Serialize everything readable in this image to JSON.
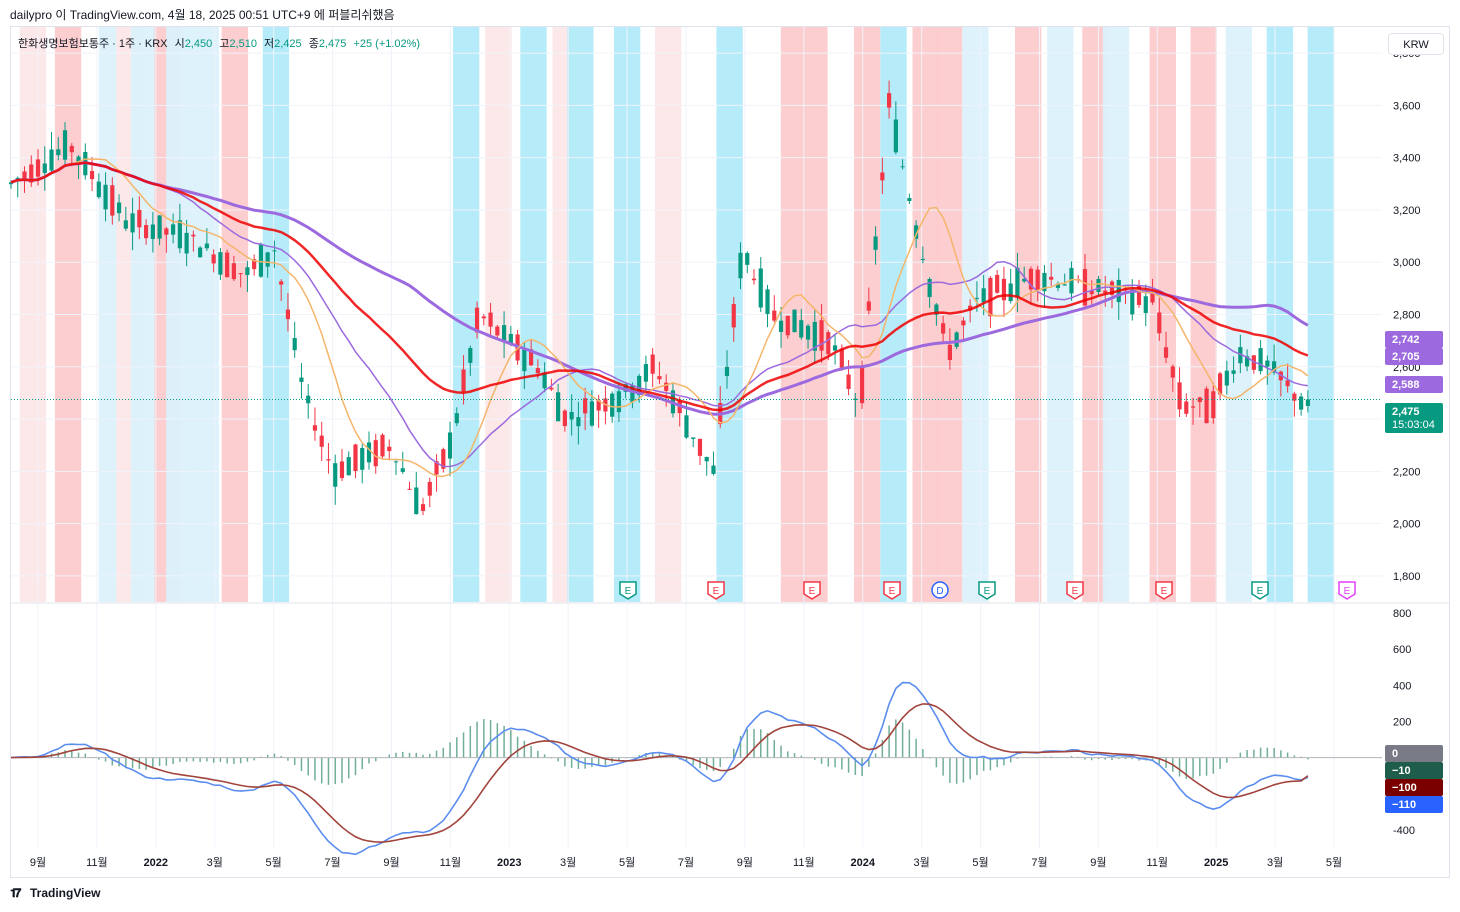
{
  "header": {
    "publisher": "dailypro 이 TradingView.com, 4월 18, 2025 00:51 UTC+9 에 퍼블리쉬했음"
  },
  "legend": {
    "symbol": "한화생명보험보통주 · 1주 · KRX",
    "open_label": "시",
    "open": "2,450",
    "high_label": "고",
    "high": "2,510",
    "low_label": "저",
    "low": "2,425",
    "close_label": "종",
    "close": "2,475",
    "change": "+25 (+1.02%)"
  },
  "currency": "KRW",
  "colors": {
    "up": "#089981",
    "down": "#f23645",
    "band_red": "#fccbcd",
    "band_pink": "#fde7e8",
    "band_blue": "#b2ebf9",
    "band_lightblue": "#dbf1fb",
    "ma_purple": "#9c6ade",
    "ma_red": "#ee0000",
    "ma_orange": "#f5b56b",
    "macd": "#5b8def",
    "signal": "#a1443c",
    "hist": "#4e9a7f"
  },
  "price_labels": {
    "ma1": "2,742",
    "ma2": "2,705",
    "ma3": "2,588",
    "last": "2,475",
    "countdown": "15:03:04"
  },
  "macd_labels": {
    "zero": "0",
    "hist": "−10",
    "signal": "−100",
    "macd": "−110"
  },
  "footer": {
    "brand": "TradingView"
  },
  "chart_data": {
    "type": "candlestick",
    "interval": "1 week",
    "symbol": "한화생명보험보통주",
    "y_axis_ticks": [
      "3,800",
      "3,600",
      "3,400",
      "3,200",
      "3,000",
      "2,800",
      "2,600",
      "2,400",
      "2,200",
      "2,000",
      "1,800"
    ],
    "ylim": [
      1700,
      3900
    ],
    "macd_axis_ticks": [
      "800",
      "600",
      "400",
      "200",
      "-400"
    ],
    "macd_ylim": [
      -500,
      850
    ],
    "x_tick_labels": [
      "9월",
      "11월",
      "2022",
      "3월",
      "5월",
      "7월",
      "9월",
      "11월",
      "2023",
      "3월",
      "5월",
      "7월",
      "9월",
      "11월",
      "2024",
      "3월",
      "5월",
      "7월",
      "9월",
      "11월",
      "2025",
      "3월",
      "5월"
    ],
    "x_span_months": [
      "2021-08",
      "2025-05"
    ],
    "price_anchors": [
      {
        "date": "2021-08",
        "close": 3300
      },
      {
        "date": "2021-10",
        "close": 3450
      },
      {
        "date": "2021-12",
        "close": 3150
      },
      {
        "date": "2022-02",
        "close": 3100
      },
      {
        "date": "2022-04",
        "close": 2950
      },
      {
        "date": "2022-05",
        "close": 3050
      },
      {
        "date": "2022-06",
        "close": 2500
      },
      {
        "date": "2022-07",
        "close": 2200
      },
      {
        "date": "2022-09",
        "close": 2300
      },
      {
        "date": "2022-10",
        "close": 2050
      },
      {
        "date": "2022-11",
        "close": 2300
      },
      {
        "date": "2022-12",
        "close": 2800
      },
      {
        "date": "2023-02",
        "close": 2600
      },
      {
        "date": "2023-03",
        "close": 2400
      },
      {
        "date": "2023-05",
        "close": 2500
      },
      {
        "date": "2023-06",
        "close": 2600
      },
      {
        "date": "2023-08",
        "close": 2200
      },
      {
        "date": "2023-09",
        "close": 3050
      },
      {
        "date": "2023-10",
        "close": 2800
      },
      {
        "date": "2023-12",
        "close": 2700
      },
      {
        "date": "2024-01",
        "close": 2450
      },
      {
        "date": "2024-02",
        "close": 3600
      },
      {
        "date": "2024-03",
        "close": 3100
      },
      {
        "date": "2024-04",
        "close": 2650
      },
      {
        "date": "2024-05",
        "close": 2850
      },
      {
        "date": "2024-07",
        "close": 2950
      },
      {
        "date": "2024-09",
        "close": 2900
      },
      {
        "date": "2024-11",
        "close": 2850
      },
      {
        "date": "2024-12",
        "close": 2450
      },
      {
        "date": "2025-01",
        "close": 2450
      },
      {
        "date": "2025-02",
        "close": 2650
      },
      {
        "date": "2025-03",
        "close": 2600
      },
      {
        "date": "2025-04",
        "close": 2475
      }
    ],
    "moving_averages": [
      {
        "value": 2742
      },
      {
        "value": 2705
      },
      {
        "value": 2588
      }
    ],
    "last_price": 2475,
    "earnings_markers": [
      "E",
      "E",
      "E",
      "E",
      "D",
      "E",
      "E",
      "E",
      "E",
      "E"
    ],
    "macd_last": {
      "macd": -110,
      "signal": -100,
      "hist": -10
    }
  }
}
